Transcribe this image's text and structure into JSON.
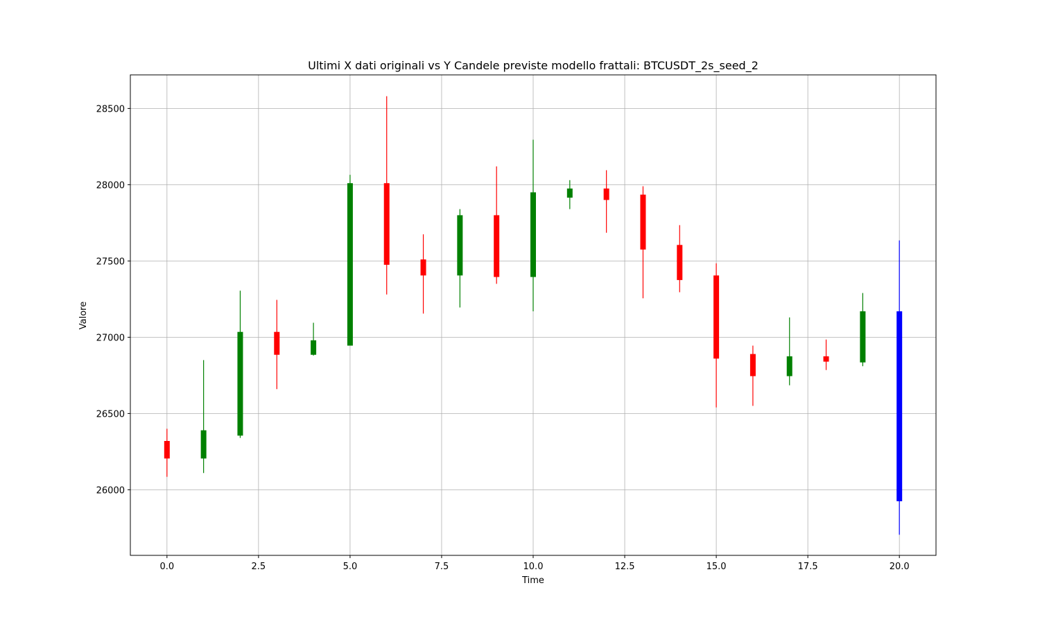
{
  "chart_data": {
    "type": "candlestick",
    "title": "Ultimi X dati originali vs Y Candele previste modello frattali: BTCUSDT_2s_seed_2",
    "xlabel": "Time",
    "ylabel": "Valore",
    "xlim": [
      -1,
      21
    ],
    "ylim": [
      25570,
      28720
    ],
    "grid": true,
    "xticks": [
      0.0,
      2.5,
      5.0,
      7.5,
      10.0,
      12.5,
      15.0,
      17.5,
      20.0
    ],
    "xtick_labels": [
      "0.0",
      "2.5",
      "5.0",
      "7.5",
      "10.0",
      "12.5",
      "15.0",
      "17.5",
      "20.0"
    ],
    "yticks": [
      26000,
      26500,
      27000,
      27500,
      28000,
      28500
    ],
    "ytick_labels": [
      "26000",
      "26500",
      "27000",
      "27500",
      "28000",
      "28500"
    ],
    "candles": [
      {
        "t": 0,
        "open": 26320,
        "high": 26400,
        "low": 26085,
        "close": 26205,
        "color": "#ff0000"
      },
      {
        "t": 1,
        "open": 26205,
        "high": 26850,
        "low": 26110,
        "close": 26390,
        "color": "#008000"
      },
      {
        "t": 2,
        "open": 26355,
        "high": 27305,
        "low": 26340,
        "close": 27035,
        "color": "#008000"
      },
      {
        "t": 3,
        "open": 27035,
        "high": 27245,
        "low": 26660,
        "close": 26885,
        "color": "#ff0000"
      },
      {
        "t": 4,
        "open": 26885,
        "high": 27095,
        "low": 26880,
        "close": 26980,
        "color": "#008000"
      },
      {
        "t": 5,
        "open": 26945,
        "high": 28065,
        "low": 26945,
        "close": 28010,
        "color": "#008000"
      },
      {
        "t": 6,
        "open": 28010,
        "high": 28580,
        "low": 27280,
        "close": 27475,
        "color": "#ff0000"
      },
      {
        "t": 7,
        "open": 27510,
        "high": 27675,
        "low": 27155,
        "close": 27405,
        "color": "#ff0000"
      },
      {
        "t": 8,
        "open": 27405,
        "high": 27840,
        "low": 27195,
        "close": 27800,
        "color": "#008000"
      },
      {
        "t": 9,
        "open": 27800,
        "high": 28120,
        "low": 27350,
        "close": 27395,
        "color": "#ff0000"
      },
      {
        "t": 10,
        "open": 27395,
        "high": 28295,
        "low": 27170,
        "close": 27950,
        "color": "#008000"
      },
      {
        "t": 11,
        "open": 27915,
        "high": 28030,
        "low": 27840,
        "close": 27975,
        "color": "#008000"
      },
      {
        "t": 12,
        "open": 27975,
        "high": 28095,
        "low": 27685,
        "close": 27900,
        "color": "#ff0000"
      },
      {
        "t": 13,
        "open": 27935,
        "high": 27990,
        "low": 27255,
        "close": 27575,
        "color": "#ff0000"
      },
      {
        "t": 14,
        "open": 27605,
        "high": 27735,
        "low": 27295,
        "close": 27375,
        "color": "#ff0000"
      },
      {
        "t": 15,
        "open": 27405,
        "high": 27485,
        "low": 26540,
        "close": 26860,
        "color": "#ff0000"
      },
      {
        "t": 16,
        "open": 26890,
        "high": 26945,
        "low": 26550,
        "close": 26745,
        "color": "#ff0000"
      },
      {
        "t": 17,
        "open": 26745,
        "high": 27130,
        "low": 26685,
        "close": 26875,
        "color": "#008000"
      },
      {
        "t": 18,
        "open": 26875,
        "high": 26985,
        "low": 26785,
        "close": 26840,
        "color": "#ff0000"
      },
      {
        "t": 19,
        "open": 26835,
        "high": 27290,
        "low": 26810,
        "close": 27170,
        "color": "#008000"
      },
      {
        "t": 20,
        "open": 27170,
        "high": 27635,
        "low": 25705,
        "close": 25925,
        "color": "#0000ff"
      }
    ]
  }
}
